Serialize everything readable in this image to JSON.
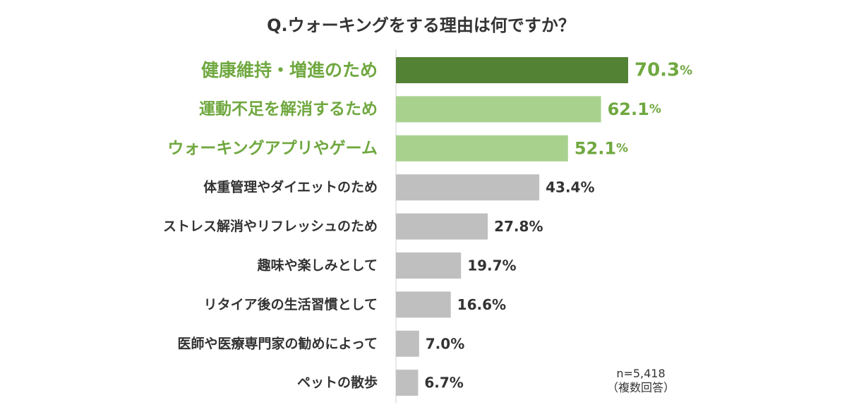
{
  "chart_data": {
    "type": "bar",
    "orientation": "horizontal",
    "title": "Q.ウォーキングをする理由は何ですか？",
    "categories": [
      "健康維持・増進のため",
      "運動不足を解消するため",
      "ウォーキングアプリやゲーム",
      "体重管理やダイエットのため",
      "ストレス解消やリフレッシュのため",
      "趣味や楽しみとして",
      "リタイア後の生活習慣として",
      "医師や医療専門家の勧めによって",
      "ペットの散歩"
    ],
    "values": [
      70.3,
      62.1,
      52.1,
      43.4,
      27.8,
      19.7,
      16.6,
      7.0,
      6.7
    ],
    "value_labels": [
      "70.3",
      "62.1",
      "52.1",
      "43.4",
      "27.8",
      "19.7",
      "16.6",
      "7.0",
      "6.7"
    ],
    "unit": "%",
    "xlim": [
      0,
      100
    ],
    "grid": false,
    "legend": "none",
    "highlight_count": 3,
    "colors": {
      "top": "#548235",
      "highlight": "#A9D18E",
      "highlight_text": "#70A840",
      "normal": "#BFBFBF",
      "normal_text": "#333333",
      "axis": "#D0D0D0"
    }
  },
  "note": {
    "sample": "n=5,418",
    "type": "（複数回答）"
  }
}
